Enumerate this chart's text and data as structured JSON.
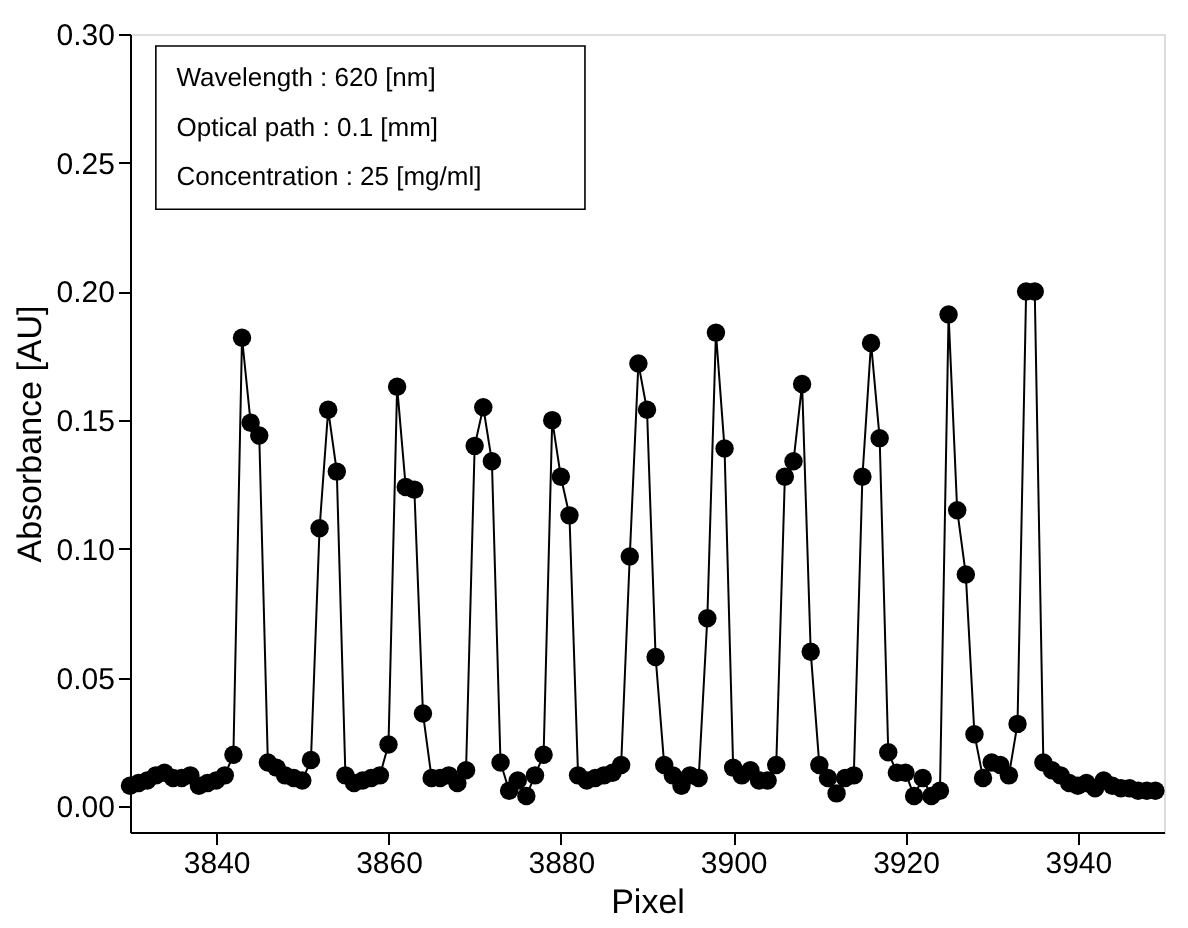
{
  "chart_data": {
    "type": "line",
    "xlabel": "Pixel",
    "ylabel": "Absorbance [AU]",
    "annotations": [
      "Wavelength : 620 [nm]",
      "Optical path : 0.1 [mm]",
      "Concentration : 25 [mg/ml]"
    ],
    "x": [
      3830,
      3831,
      3832,
      3833,
      3834,
      3835,
      3836,
      3837,
      3838,
      3839,
      3840,
      3841,
      3842,
      3843,
      3844,
      3845,
      3846,
      3847,
      3848,
      3849,
      3850,
      3851,
      3852,
      3853,
      3854,
      3855,
      3856,
      3857,
      3858,
      3859,
      3860,
      3861,
      3862,
      3863,
      3864,
      3865,
      3866,
      3867,
      3868,
      3869,
      3870,
      3871,
      3872,
      3873,
      3874,
      3875,
      3876,
      3877,
      3878,
      3879,
      3880,
      3881,
      3882,
      3883,
      3884,
      3885,
      3886,
      3887,
      3888,
      3889,
      3890,
      3891,
      3892,
      3893,
      3894,
      3895,
      3896,
      3897,
      3898,
      3899,
      3900,
      3901,
      3902,
      3903,
      3904,
      3905,
      3906,
      3907,
      3908,
      3909,
      3910,
      3911,
      3912,
      3913,
      3914,
      3915,
      3916,
      3917,
      3918,
      3919,
      3920,
      3921,
      3922,
      3923,
      3924,
      3925,
      3926,
      3927,
      3928,
      3929,
      3930,
      3931,
      3932,
      3933,
      3934,
      3935,
      3936,
      3937,
      3938,
      3939,
      3940,
      3941,
      3942,
      3943,
      3944,
      3945,
      3946,
      3947,
      3948,
      3949
    ],
    "series": [
      {
        "color": "#000000",
        "values": [
          0.008,
          0.009,
          0.01,
          0.012,
          0.013,
          0.011,
          0.011,
          0.012,
          0.008,
          0.009,
          0.01,
          0.012,
          0.02,
          0.182,
          0.149,
          0.144,
          0.017,
          0.015,
          0.012,
          0.011,
          0.01,
          0.018,
          0.108,
          0.154,
          0.13,
          0.012,
          0.009,
          0.01,
          0.011,
          0.012,
          0.024,
          0.163,
          0.124,
          0.123,
          0.036,
          0.011,
          0.011,
          0.012,
          0.009,
          0.014,
          0.14,
          0.155,
          0.134,
          0.017,
          0.006,
          0.01,
          0.004,
          0.012,
          0.02,
          0.15,
          0.128,
          0.113,
          0.012,
          0.01,
          0.011,
          0.012,
          0.013,
          0.016,
          0.097,
          0.172,
          0.154,
          0.058,
          0.016,
          0.012,
          0.008,
          0.012,
          0.011,
          0.073,
          0.184,
          0.139,
          0.015,
          0.012,
          0.014,
          0.01,
          0.01,
          0.016,
          0.128,
          0.134,
          0.164,
          0.06,
          0.016,
          0.011,
          0.005,
          0.011,
          0.012,
          0.128,
          0.18,
          0.143,
          0.021,
          0.013,
          0.013,
          0.004,
          0.011,
          0.004,
          0.006,
          0.191,
          0.115,
          0.09,
          0.028,
          0.011,
          0.017,
          0.016,
          0.012,
          0.032,
          0.2,
          0.2,
          0.017,
          0.014,
          0.012,
          0.009,
          0.008,
          0.009,
          0.007,
          0.01,
          0.008,
          0.007,
          0.007,
          0.006,
          0.006,
          0.006
        ]
      }
    ],
    "marker": "circle",
    "line_style": "solid",
    "grid": false,
    "xlim": [
      3830,
      3950
    ],
    "xticks": [
      3840,
      3860,
      3880,
      3900,
      3920,
      3940
    ],
    "ylim": [
      -0.01,
      0.3
    ],
    "yticks": [
      {
        "value": 0,
        "label": "0.00"
      },
      {
        "value": 0.05,
        "label": "0.05"
      },
      {
        "value": 0.1,
        "label": "0.10"
      },
      {
        "value": 0.15,
        "label": "0.15"
      },
      {
        "value": 0.2,
        "label": "0.20"
      },
      {
        "value": 0.25,
        "label": "0.25"
      },
      {
        "value": 0.3,
        "label": "0.30"
      }
    ]
  }
}
